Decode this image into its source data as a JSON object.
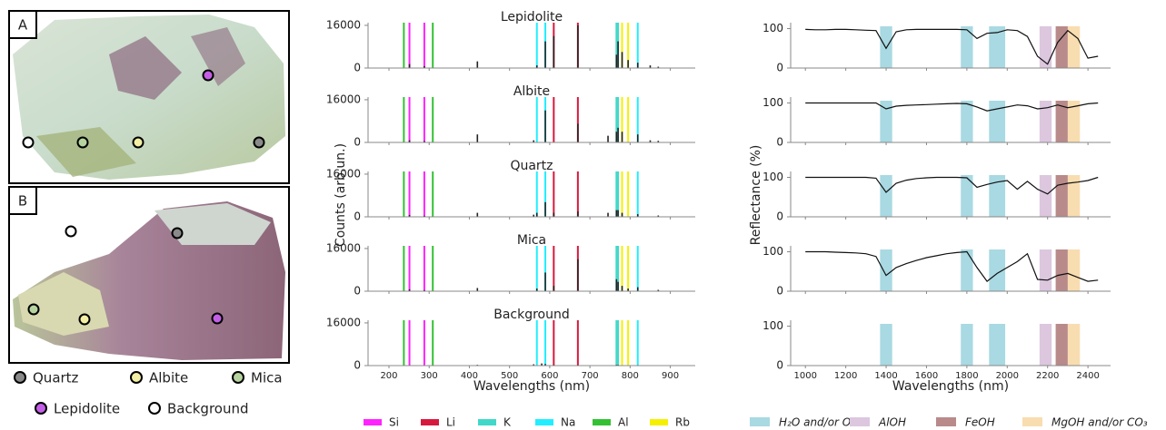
{
  "photo": {
    "panels": [
      "A",
      "B"
    ],
    "legend": [
      {
        "name": "Quartz",
        "color": "#8a8a8a"
      },
      {
        "name": "Albite",
        "color": "#f3efa4"
      },
      {
        "name": "Mica",
        "color": "#b6d4a0"
      },
      {
        "name": "Lepidolite",
        "color": "#c35fe6"
      },
      {
        "name": "Background",
        "color": "#ffffff"
      }
    ]
  },
  "chart_data": [
    {
      "type": "spectrum",
      "ylabel": "Counts (arb.un.)",
      "xlabel": "Wavelengths (nm)",
      "xlim": [
        148,
        962
      ],
      "ylim": [
        0,
        17000
      ],
      "xticks": [
        200,
        300,
        400,
        500,
        600,
        700,
        800,
        900
      ],
      "yticks": [
        0,
        16000
      ],
      "lines": [
        {
          "name": "Si",
          "color": "#ff22ff",
          "x": [
            251,
            288
          ]
        },
        {
          "name": "Li",
          "color": "#d7193d",
          "x": [
            610,
            670
          ]
        },
        {
          "name": "K",
          "color": "#40d8c8",
          "x": [
            766,
            770
          ]
        },
        {
          "name": "Na",
          "color": "#22eeff",
          "x": [
            568,
            589,
            819
          ]
        },
        {
          "name": "Al",
          "color": "#33c133",
          "x": [
            237,
            309
          ]
        },
        {
          "name": "Rb",
          "color": "#f5f000",
          "x": [
            780,
            795
          ]
        }
      ],
      "panels": [
        {
          "title": "Lepidolite",
          "x": [
            251,
            288,
            420,
            568,
            589,
            610,
            670,
            766,
            770,
            780,
            795,
            819,
            850,
            870
          ],
          "values": [
            1500,
            700,
            2500,
            1000,
            10000,
            12000,
            16000,
            5000,
            10000,
            6000,
            3000,
            2000,
            1000,
            500
          ]
        },
        {
          "title": "Albite",
          "x": [
            251,
            288,
            420,
            560,
            589,
            670,
            745,
            766,
            770,
            780,
            819,
            850,
            870
          ],
          "values": [
            800,
            500,
            3000,
            800,
            12000,
            7000,
            2500,
            4000,
            5500,
            4000,
            3000,
            800,
            600
          ]
        },
        {
          "title": "Quartz",
          "x": [
            251,
            288,
            420,
            560,
            568,
            589,
            610,
            670,
            745,
            766,
            770,
            780,
            819,
            870
          ],
          "values": [
            700,
            400,
            1500,
            800,
            1500,
            5500,
            1500,
            2000,
            1500,
            2500,
            2500,
            1500,
            1000,
            500
          ]
        },
        {
          "title": "Mica",
          "x": [
            251,
            288,
            420,
            568,
            589,
            610,
            670,
            766,
            770,
            780,
            795,
            819,
            870
          ],
          "values": [
            700,
            400,
            1200,
            1000,
            7000,
            2000,
            12000,
            4500,
            3500,
            2000,
            1000,
            1500,
            500
          ]
        },
        {
          "title": "Background",
          "x": [
            251,
            420,
            560,
            580,
            589,
            610,
            670,
            766,
            770,
            819
          ],
          "values": [
            200,
            300,
            500,
            800,
            600,
            300,
            300,
            300,
            300,
            200
          ]
        }
      ]
    },
    {
      "type": "reflectance",
      "ylabel": "Reflectance (%)",
      "xlabel": "Wavelengths (nm)",
      "xlim": [
        927,
        2512
      ],
      "ylim": [
        0,
        115
      ],
      "xticks": [
        1000,
        1200,
        1400,
        1600,
        1800,
        2000,
        2200,
        2400
      ],
      "yticks": [
        0,
        100
      ],
      "x": [
        1000,
        1050,
        1100,
        1150,
        1200,
        1250,
        1300,
        1350,
        1400,
        1450,
        1500,
        1550,
        1600,
        1650,
        1700,
        1750,
        1800,
        1850,
        1900,
        1950,
        2000,
        2050,
        2100,
        2150,
        2200,
        2250,
        2300,
        2350,
        2400,
        2450
      ],
      "bands": [
        {
          "name": "H₂O and/or OH",
          "color": "#a9d9e2",
          "ranges": [
            [
              1370,
              1430
            ],
            [
              1770,
              1830
            ],
            [
              1910,
              1990
            ]
          ]
        },
        {
          "name": "AlOH",
          "color": "#dcc7df",
          "ranges": [
            [
              2160,
              2220
            ]
          ]
        },
        {
          "name": "FeOH",
          "color": "#b98a8a",
          "ranges": [
            [
              2240,
              2300
            ]
          ]
        },
        {
          "name": "MgOH and/or CO₃",
          "color": "#f8ddb0",
          "ranges": [
            [
              2300,
              2360
            ]
          ]
        }
      ],
      "series": [
        {
          "values": [
            98,
            97,
            97,
            98,
            98,
            97,
            96,
            95,
            50,
            92,
            97,
            98,
            98,
            98,
            98,
            98,
            97,
            75,
            88,
            90,
            97,
            95,
            80,
            30,
            10,
            65,
            95,
            75,
            25,
            30
          ]
        },
        {
          "values": [
            100,
            100,
            100,
            100,
            100,
            100,
            100,
            100,
            85,
            92,
            94,
            95,
            96,
            97,
            98,
            99,
            98,
            90,
            80,
            85,
            90,
            95,
            93,
            85,
            88,
            95,
            88,
            93,
            98,
            100
          ]
        },
        {
          "values": [
            100,
            100,
            100,
            100,
            100,
            100,
            100,
            98,
            62,
            85,
            93,
            97,
            99,
            100,
            100,
            100,
            99,
            75,
            82,
            88,
            92,
            70,
            90,
            70,
            58,
            80,
            85,
            88,
            92,
            100
          ]
        },
        {
          "values": [
            100,
            100,
            100,
            99,
            98,
            97,
            95,
            88,
            40,
            60,
            70,
            78,
            85,
            90,
            95,
            98,
            100,
            60,
            25,
            45,
            60,
            75,
            95,
            30,
            28,
            40,
            45,
            35,
            25,
            28
          ]
        }
      ]
    }
  ]
}
